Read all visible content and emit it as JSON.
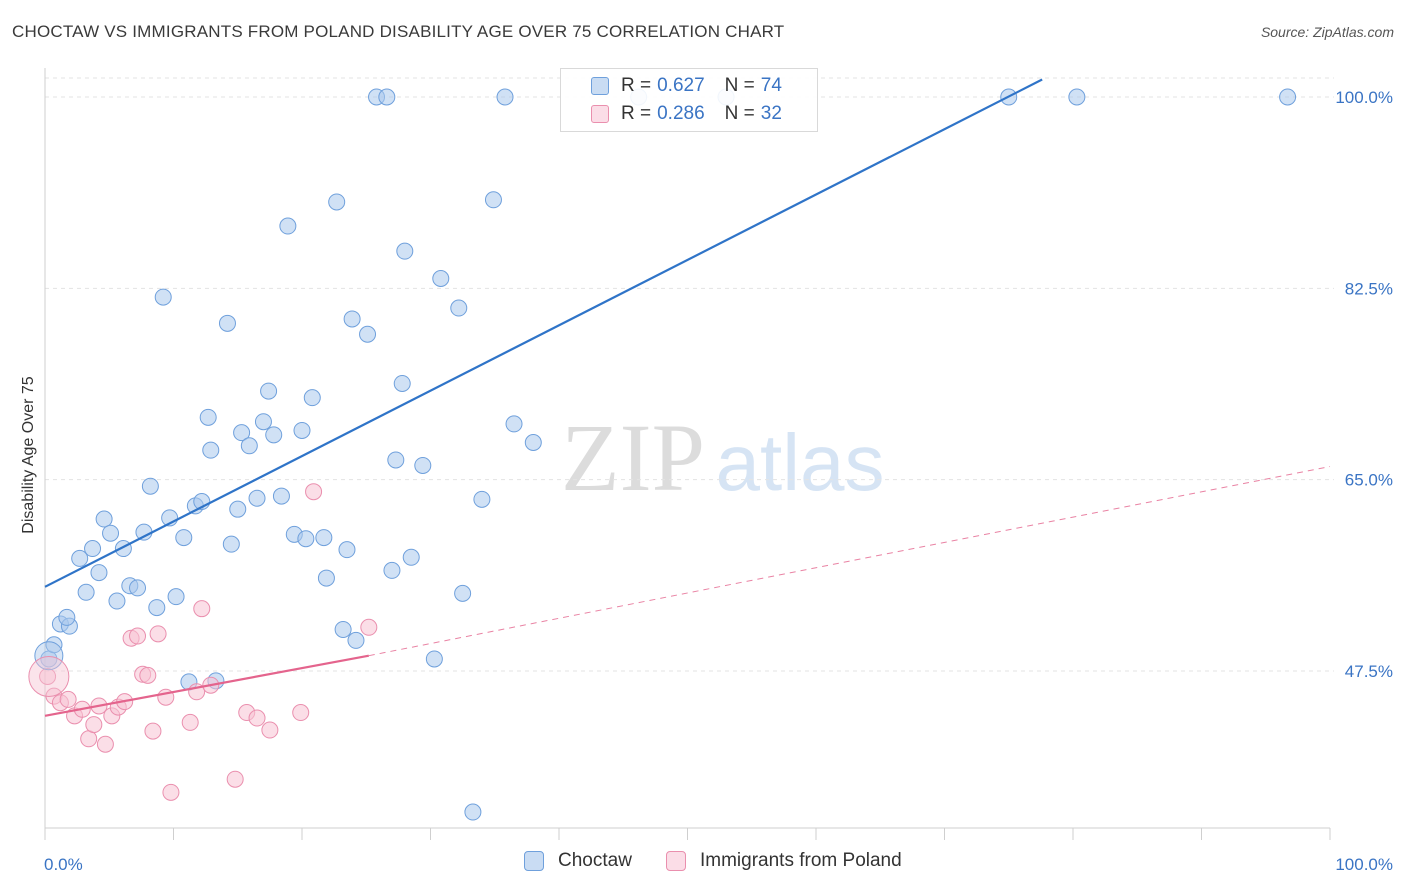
{
  "title": "CHOCTAW VS IMMIGRANTS FROM POLAND DISABILITY AGE OVER 75 CORRELATION CHART",
  "source": "Source: ZipAtlas.com",
  "watermark": {
    "zip": "ZIP",
    "atlas": "atlas"
  },
  "legend": {
    "rows": [
      {
        "r_key": "R =",
        "r_value": "0.627",
        "n_key": "N =",
        "n_value": "74",
        "color": "#aac8ec",
        "stroke": "#6fa0dc"
      },
      {
        "r_key": "R =",
        "r_value": "0.286",
        "n_key": "N =",
        "n_value": "32",
        "color": "#f7c3d3",
        "stroke": "#ea8fae"
      }
    ]
  },
  "chart_data": {
    "type": "scatter",
    "title": "CHOCTAW VS IMMIGRANTS FROM POLAND DISABILITY AGE OVER 75 CORRELATION CHART",
    "xlabel": "",
    "ylabel": "Disability Age Over 75",
    "xlim": [
      0,
      100
    ],
    "ylim": [
      32.5,
      101.6
    ],
    "x_tick_labels": [
      "0.0%",
      "100.0%"
    ],
    "y_ticks": [
      47.5,
      65.0,
      82.5,
      100.0
    ],
    "y_tick_labels": [
      "47.5%",
      "65.0%",
      "82.5%",
      "100.0%"
    ],
    "grid": true,
    "legend_position": "top-center",
    "series": [
      {
        "name": "Choctaw",
        "color": "#aac8ec",
        "stroke": "#6fa0dc",
        "line_color": "#2f74c8",
        "trend": {
          "x": [
            0,
            77.6
          ],
          "y": [
            55.2,
            101.6
          ],
          "style": "solid"
        },
        "points": [
          [
            0.3,
            48.6
          ],
          [
            0.7,
            49.9
          ],
          [
            1.2,
            51.8
          ],
          [
            1.9,
            51.6
          ],
          [
            1.7,
            52.4
          ],
          [
            2.7,
            57.8
          ],
          [
            3.2,
            54.7
          ],
          [
            3.7,
            58.7
          ],
          [
            4.2,
            56.5
          ],
          [
            4.6,
            61.4
          ],
          [
            5.1,
            60.1
          ],
          [
            5.6,
            53.9
          ],
          [
            6.1,
            58.7
          ],
          [
            6.6,
            55.3
          ],
          [
            7.2,
            55.1
          ],
          [
            7.7,
            60.2
          ],
          [
            8.2,
            64.4
          ],
          [
            8.7,
            53.3
          ],
          [
            9.2,
            81.7
          ],
          [
            9.7,
            61.5
          ],
          [
            10.2,
            54.3
          ],
          [
            10.8,
            59.7
          ],
          [
            11.2,
            46.5
          ],
          [
            11.7,
            62.6
          ],
          [
            12.2,
            63.0
          ],
          [
            12.7,
            70.7
          ],
          [
            12.9,
            67.7
          ],
          [
            13.3,
            46.6
          ],
          [
            14.2,
            79.3
          ],
          [
            14.5,
            59.1
          ],
          [
            15.0,
            62.3
          ],
          [
            15.3,
            69.3
          ],
          [
            15.9,
            68.1
          ],
          [
            16.5,
            63.3
          ],
          [
            17.0,
            70.3
          ],
          [
            17.4,
            73.1
          ],
          [
            17.8,
            69.1
          ],
          [
            18.4,
            63.5
          ],
          [
            18.9,
            88.2
          ],
          [
            19.4,
            60.0
          ],
          [
            20.0,
            69.5
          ],
          [
            20.3,
            59.6
          ],
          [
            20.8,
            72.5
          ],
          [
            21.7,
            59.7
          ],
          [
            21.9,
            56.0
          ],
          [
            22.7,
            90.4
          ],
          [
            23.2,
            51.3
          ],
          [
            23.5,
            58.6
          ],
          [
            23.9,
            79.7
          ],
          [
            24.2,
            50.3
          ],
          [
            25.1,
            78.3
          ],
          [
            25.8,
            100.0
          ],
          [
            26.6,
            100.0
          ],
          [
            27.0,
            56.7
          ],
          [
            27.3,
            66.8
          ],
          [
            27.8,
            73.8
          ],
          [
            28.0,
            85.9
          ],
          [
            28.5,
            57.9
          ],
          [
            29.4,
            66.3
          ],
          [
            30.3,
            48.6
          ],
          [
            30.8,
            83.4
          ],
          [
            32.2,
            80.7
          ],
          [
            32.5,
            54.6
          ],
          [
            33.3,
            34.6
          ],
          [
            34.0,
            63.2
          ],
          [
            34.9,
            90.6
          ],
          [
            35.8,
            100.0
          ],
          [
            36.5,
            70.1
          ],
          [
            38.0,
            68.4
          ],
          [
            75.0,
            100.0
          ],
          [
            80.3,
            100.0
          ],
          [
            96.7,
            100.0
          ],
          [
            53.0,
            100.0
          ],
          [
            46.2,
            100.0
          ]
        ]
      },
      {
        "name": "Immigrants from Poland",
        "color": "#f7c3d3",
        "stroke": "#ea8fae",
        "line_color": "#e4648d",
        "trend": {
          "x": [
            0,
            25.2
          ],
          "y": [
            43.4,
            48.9
          ],
          "style": "solid"
        },
        "trend_extension": {
          "x": [
            25.2,
            100
          ],
          "y": [
            48.9,
            66.2
          ],
          "style": "dashed"
        },
        "points": [
          [
            0.2,
            47.0
          ],
          [
            0.7,
            45.2
          ],
          [
            1.2,
            44.6
          ],
          [
            1.8,
            44.9
          ],
          [
            2.3,
            43.4
          ],
          [
            2.9,
            44.0
          ],
          [
            3.4,
            41.3
          ],
          [
            3.8,
            42.6
          ],
          [
            4.2,
            44.3
          ],
          [
            4.7,
            40.8
          ],
          [
            5.2,
            43.4
          ],
          [
            5.7,
            44.2
          ],
          [
            6.2,
            44.7
          ],
          [
            6.7,
            50.5
          ],
          [
            7.2,
            50.7
          ],
          [
            7.6,
            47.2
          ],
          [
            8.0,
            47.1
          ],
          [
            8.4,
            42.0
          ],
          [
            8.8,
            50.9
          ],
          [
            9.4,
            45.1
          ],
          [
            9.8,
            36.4
          ],
          [
            11.3,
            42.8
          ],
          [
            11.8,
            45.6
          ],
          [
            12.2,
            53.2
          ],
          [
            12.9,
            46.2
          ],
          [
            14.8,
            37.6
          ],
          [
            15.7,
            43.7
          ],
          [
            16.5,
            43.2
          ],
          [
            17.5,
            42.1
          ],
          [
            19.9,
            43.7
          ],
          [
            20.9,
            63.9
          ],
          [
            25.2,
            51.5
          ]
        ]
      }
    ]
  },
  "bottom_legend": [
    {
      "label": "Choctaw",
      "color": "#c9dcf3",
      "stroke": "#6fa0dc"
    },
    {
      "label": "Immigrants from Poland",
      "color": "#fbdde7",
      "stroke": "#ea8fae"
    }
  ]
}
